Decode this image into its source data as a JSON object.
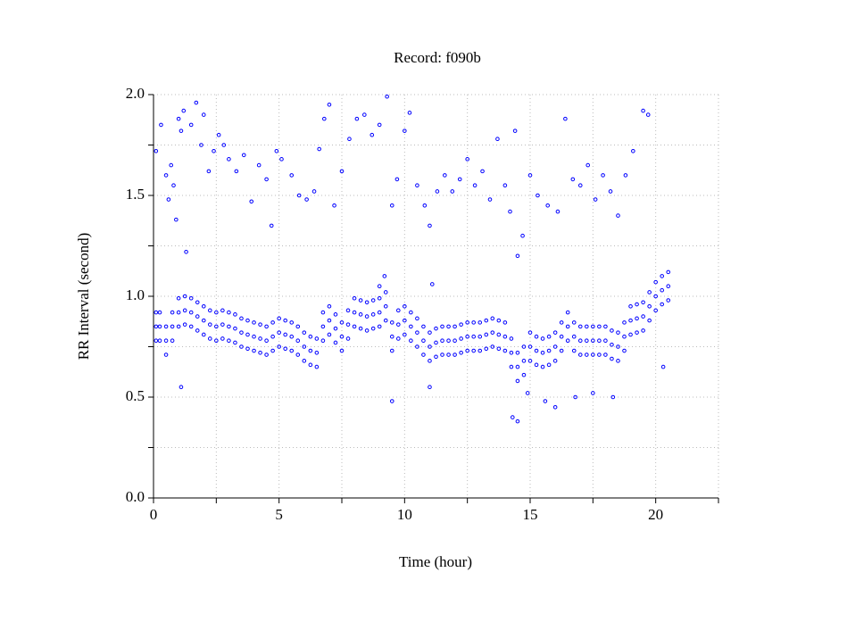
{
  "chart_data": {
    "type": "scatter",
    "title": "Record:  f090b",
    "x_label": "Time (hour)",
    "y_label": "RR Interval (second)",
    "color": "#0000ff",
    "grid": true,
    "xlim": [
      0,
      22.5
    ],
    "xticks": [
      0,
      5,
      10,
      15,
      20
    ],
    "ylim": [
      0,
      2.0
    ],
    "yticks": [
      {
        "value": 0,
        "label": "0.0"
      },
      {
        "value": 0.5,
        "label": "0.5"
      },
      {
        "value": 1.0,
        "label": "1.0"
      },
      {
        "value": 1.5,
        "label": "1.5"
      },
      {
        "value": 2.0,
        "label": "2.0"
      }
    ],
    "x": [
      0.1,
      0.1,
      0.1,
      0.25,
      0.25,
      0.25,
      0.5,
      0.5,
      0.5,
      0.75,
      0.75,
      0.75,
      1.0,
      1.0,
      1.0,
      1.25,
      1.25,
      1.25,
      1.5,
      1.5,
      1.5,
      1.75,
      1.75,
      1.75,
      2.0,
      2.0,
      2.0,
      2.25,
      2.25,
      2.25,
      2.5,
      2.5,
      2.5,
      2.75,
      2.75,
      2.75,
      3.0,
      3.0,
      3.0,
      3.25,
      3.25,
      3.25,
      3.5,
      3.5,
      3.5,
      3.75,
      3.75,
      3.75,
      4.0,
      4.0,
      4.0,
      4.25,
      4.25,
      4.25,
      4.5,
      4.5,
      4.5,
      4.75,
      4.75,
      4.75,
      5.0,
      5.0,
      5.0,
      5.25,
      5.25,
      5.25,
      5.5,
      5.5,
      5.5,
      5.75,
      5.75,
      5.75,
      6.0,
      6.0,
      6.0,
      6.25,
      6.25,
      6.25,
      6.5,
      6.5,
      6.5,
      6.75,
      6.75,
      6.75,
      7.0,
      7.0,
      7.0,
      7.25,
      7.25,
      7.25,
      7.5,
      7.5,
      7.5,
      7.75,
      7.75,
      7.75,
      8.0,
      8.0,
      8.0,
      8.25,
      8.25,
      8.25,
      8.5,
      8.5,
      8.5,
      8.75,
      8.75,
      8.75,
      9.0,
      9.0,
      9.0,
      9.25,
      9.25,
      9.25,
      9.5,
      9.5,
      9.5,
      9.75,
      9.75,
      9.75,
      10.0,
      10.0,
      10.0,
      10.25,
      10.25,
      10.25,
      10.5,
      10.5,
      10.5,
      10.75,
      10.75,
      10.75,
      11.0,
      11.0,
      11.0,
      11.25,
      11.25,
      11.25,
      11.5,
      11.5,
      11.5,
      11.75,
      11.75,
      11.75,
      12.0,
      12.0,
      12.0,
      12.25,
      12.25,
      12.25,
      12.5,
      12.5,
      12.5,
      12.75,
      12.75,
      12.75,
      13.0,
      13.0,
      13.0,
      13.25,
      13.25,
      13.25,
      13.5,
      13.5,
      13.5,
      13.75,
      13.75,
      13.75,
      14.0,
      14.0,
      14.0,
      14.25,
      14.25,
      14.25,
      14.5,
      14.5,
      14.5,
      14.75,
      14.75,
      14.75,
      15.0,
      15.0,
      15.0,
      15.25,
      15.25,
      15.25,
      15.5,
      15.5,
      15.5,
      15.75,
      15.75,
      15.75,
      16.0,
      16.0,
      16.0,
      16.25,
      16.25,
      16.25,
      16.5,
      16.5,
      16.5,
      16.75,
      16.75,
      16.75,
      17.0,
      17.0,
      17.0,
      17.25,
      17.25,
      17.25,
      17.5,
      17.5,
      17.5,
      17.75,
      17.75,
      17.75,
      18.0,
      18.0,
      18.0,
      18.25,
      18.25,
      18.25,
      18.5,
      18.5,
      18.5,
      18.75,
      18.75,
      18.75,
      19.0,
      19.0,
      19.0,
      19.25,
      19.25,
      19.25,
      19.5,
      19.5,
      19.5,
      19.75,
      19.75,
      19.75,
      20.0,
      20.0,
      20.0,
      20.25,
      20.25,
      20.25,
      20.5,
      20.5,
      20.5,
      0.1,
      0.3,
      0.5,
      0.6,
      0.7,
      0.8,
      0.9,
      1.0,
      1.1,
      1.2,
      1.3,
      1.5,
      1.7,
      1.9,
      2.0,
      2.2,
      2.4,
      2.6,
      2.8,
      3.0,
      3.3,
      3.6,
      3.9,
      4.2,
      4.5,
      4.7,
      4.9,
      5.1,
      5.5,
      5.8,
      6.1,
      6.4,
      6.6,
      6.8,
      7.0,
      7.2,
      7.5,
      7.8,
      8.1,
      8.4,
      8.7,
      9.0,
      9.3,
      9.5,
      9.7,
      10.0,
      10.2,
      10.5,
      10.8,
      11.0,
      11.3,
      11.6,
      11.9,
      12.2,
      12.5,
      12.8,
      13.1,
      13.4,
      13.7,
      14.0,
      14.2,
      14.4,
      14.5,
      14.7,
      15.0,
      15.3,
      15.7,
      16.1,
      16.4,
      16.7,
      17.0,
      17.3,
      17.6,
      17.9,
      18.2,
      18.5,
      18.8,
      19.1,
      19.5,
      19.7,
      1.1,
      9.5,
      11.0,
      14.3,
      14.5,
      14.9,
      15.6,
      16.0,
      16.8,
      17.5,
      18.3,
      20.3,
      9.2,
      11.1,
      9.0
    ],
    "values": [
      0.92,
      0.85,
      0.78,
      0.92,
      0.85,
      0.78,
      0.85,
      0.78,
      0.71,
      0.92,
      0.85,
      0.78,
      0.99,
      0.92,
      0.85,
      1.0,
      0.93,
      0.86,
      0.99,
      0.92,
      0.85,
      0.97,
      0.9,
      0.83,
      0.95,
      0.88,
      0.81,
      0.93,
      0.86,
      0.79,
      0.92,
      0.85,
      0.78,
      0.93,
      0.86,
      0.79,
      0.92,
      0.85,
      0.78,
      0.91,
      0.84,
      0.77,
      0.89,
      0.82,
      0.75,
      0.88,
      0.81,
      0.74,
      0.87,
      0.8,
      0.73,
      0.86,
      0.79,
      0.72,
      0.85,
      0.78,
      0.71,
      0.87,
      0.8,
      0.73,
      0.89,
      0.82,
      0.75,
      0.88,
      0.81,
      0.74,
      0.87,
      0.8,
      0.73,
      0.85,
      0.78,
      0.71,
      0.82,
      0.75,
      0.68,
      0.8,
      0.73,
      0.66,
      0.79,
      0.72,
      0.65,
      0.92,
      0.85,
      0.78,
      0.95,
      0.88,
      0.81,
      0.91,
      0.84,
      0.77,
      0.87,
      0.8,
      0.73,
      0.93,
      0.86,
      0.79,
      0.99,
      0.92,
      0.85,
      0.98,
      0.91,
      0.84,
      0.97,
      0.9,
      0.83,
      0.98,
      0.91,
      0.84,
      0.99,
      0.92,
      0.85,
      1.02,
      0.95,
      0.88,
      0.87,
      0.8,
      0.73,
      0.93,
      0.86,
      0.79,
      0.95,
      0.88,
      0.81,
      0.92,
      0.85,
      0.78,
      0.89,
      0.82,
      0.75,
      0.85,
      0.78,
      0.71,
      0.82,
      0.75,
      0.68,
      0.84,
      0.77,
      0.7,
      0.85,
      0.78,
      0.71,
      0.85,
      0.78,
      0.71,
      0.85,
      0.78,
      0.71,
      0.86,
      0.79,
      0.72,
      0.87,
      0.8,
      0.73,
      0.87,
      0.8,
      0.73,
      0.87,
      0.8,
      0.73,
      0.88,
      0.81,
      0.74,
      0.89,
      0.82,
      0.75,
      0.88,
      0.81,
      0.74,
      0.87,
      0.8,
      0.73,
      0.79,
      0.72,
      0.65,
      0.72,
      0.65,
      0.58,
      0.75,
      0.68,
      0.61,
      0.82,
      0.75,
      0.68,
      0.8,
      0.73,
      0.66,
      0.79,
      0.72,
      0.65,
      0.8,
      0.73,
      0.66,
      0.82,
      0.75,
      0.68,
      0.87,
      0.8,
      0.73,
      0.92,
      0.85,
      0.78,
      0.87,
      0.8,
      0.73,
      0.85,
      0.78,
      0.71,
      0.85,
      0.78,
      0.71,
      0.85,
      0.78,
      0.71,
      0.85,
      0.78,
      0.71,
      0.85,
      0.78,
      0.71,
      0.83,
      0.76,
      0.69,
      0.82,
      0.75,
      0.68,
      0.87,
      0.8,
      0.73,
      0.95,
      0.88,
      0.81,
      0.96,
      0.89,
      0.82,
      0.97,
      0.9,
      0.83,
      1.02,
      0.95,
      0.88,
      1.07,
      1.0,
      0.93,
      1.1,
      1.03,
      0.96,
      1.12,
      1.05,
      0.98,
      1.72,
      1.85,
      1.6,
      1.48,
      1.65,
      1.55,
      1.38,
      1.88,
      1.82,
      1.92,
      1.22,
      1.85,
      1.96,
      1.75,
      1.9,
      1.62,
      1.72,
      1.8,
      1.75,
      1.68,
      1.62,
      1.7,
      1.47,
      1.65,
      1.58,
      1.35,
      1.72,
      1.68,
      1.6,
      1.5,
      1.48,
      1.52,
      1.73,
      1.88,
      1.95,
      1.45,
      1.62,
      1.78,
      1.88,
      1.9,
      1.8,
      1.85,
      1.99,
      1.45,
      1.58,
      1.82,
      1.91,
      1.55,
      1.45,
      1.35,
      1.52,
      1.6,
      1.52,
      1.58,
      1.68,
      1.55,
      1.62,
      1.48,
      1.78,
      1.55,
      1.42,
      1.82,
      1.2,
      1.3,
      1.6,
      1.5,
      1.45,
      1.42,
      1.88,
      1.58,
      1.55,
      1.65,
      1.48,
      1.6,
      1.52,
      1.4,
      1.6,
      1.72,
      1.92,
      1.9,
      0.55,
      0.48,
      0.55,
      0.4,
      0.38,
      0.52,
      0.48,
      0.45,
      0.5,
      0.52,
      0.5,
      0.65,
      1.1,
      1.06,
      1.05
    ]
  }
}
